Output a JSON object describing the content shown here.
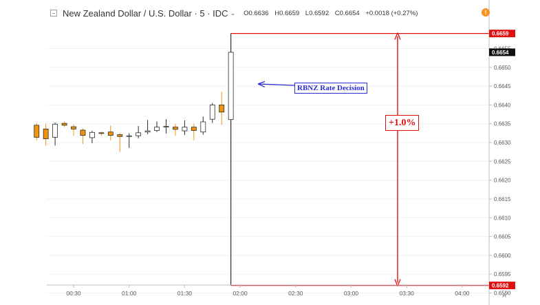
{
  "header": {
    "symbol_title": "New Zealand Dollar / U.S. Dollar · 5 · IDC",
    "open_label": "O0.6636",
    "high_label": "H0.6659",
    "low_label": "L0.6592",
    "close_label": "C0.6654",
    "change_label": "+0.0018 (+0.27%)"
  },
  "annotations": {
    "event_label": "RBNZ Rate Decision",
    "range_label": "+1.0%",
    "upper_price_badge": "0.6659",
    "last_price_badge": "0.6654",
    "lower_price_badge": "0.6592"
  },
  "price_scale": {
    "mode_label": "A"
  },
  "colors": {
    "bull_body": "#ffffff",
    "bear_body": "#f0940e",
    "candle_outline": "#2a2a2a",
    "bear_wick": "#f0940e",
    "annotation_red": "#e01010",
    "annotation_blue": "#2b2bd6",
    "last_price_badge": "#111111"
  },
  "chart_data": {
    "type": "candlestick",
    "x_ticks": [
      "00:30",
      "01:00",
      "01:30",
      "02:00",
      "02:30",
      "03:00",
      "03:30",
      "04:00"
    ],
    "y_ticks": [
      "0.6655",
      "0.6650",
      "0.6645",
      "0.6640",
      "0.6635",
      "0.6630",
      "0.6625",
      "0.6620",
      "0.6615",
      "0.6610",
      "0.6605",
      "0.6600",
      "0.6595",
      "0.6590"
    ],
    "ylim": [
      0.65868,
      0.66679
    ],
    "time_start": "00:10",
    "interval_minutes": 5,
    "candles": [
      {
        "o": 0.66346,
        "h": 0.66352,
        "l": 0.66306,
        "c": 0.66314
      },
      {
        "o": 0.66336,
        "h": 0.66351,
        "l": 0.66292,
        "c": 0.6631
      },
      {
        "o": 0.66314,
        "h": 0.66353,
        "l": 0.66292,
        "c": 0.66349
      },
      {
        "o": 0.66351,
        "h": 0.66356,
        "l": 0.66341,
        "c": 0.66346
      },
      {
        "o": 0.66342,
        "h": 0.66348,
        "l": 0.66318,
        "c": 0.66336
      },
      {
        "o": 0.66333,
        "h": 0.66338,
        "l": 0.66296,
        "c": 0.66319
      },
      {
        "o": 0.66313,
        "h": 0.66331,
        "l": 0.66298,
        "c": 0.66327
      },
      {
        "o": 0.66326,
        "h": 0.66329,
        "l": 0.66318,
        "c": 0.66324
      },
      {
        "o": 0.66328,
        "h": 0.66345,
        "l": 0.66306,
        "c": 0.66319
      },
      {
        "o": 0.66321,
        "h": 0.66325,
        "l": 0.66275,
        "c": 0.66316
      },
      {
        "o": 0.66316,
        "h": 0.66325,
        "l": 0.66286,
        "c": 0.66318
      },
      {
        "o": 0.66318,
        "h": 0.66344,
        "l": 0.66311,
        "c": 0.66326
      },
      {
        "o": 0.66328,
        "h": 0.6636,
        "l": 0.66322,
        "c": 0.66331
      },
      {
        "o": 0.66332,
        "h": 0.66356,
        "l": 0.66328,
        "c": 0.66341
      },
      {
        "o": 0.66342,
        "h": 0.66362,
        "l": 0.66324,
        "c": 0.66343
      },
      {
        "o": 0.66341,
        "h": 0.6635,
        "l": 0.66318,
        "c": 0.66335
      },
      {
        "o": 0.66331,
        "h": 0.66359,
        "l": 0.6632,
        "c": 0.66341
      },
      {
        "o": 0.66341,
        "h": 0.6635,
        "l": 0.66306,
        "c": 0.66332
      },
      {
        "o": 0.66328,
        "h": 0.66369,
        "l": 0.66321,
        "c": 0.66355
      },
      {
        "o": 0.66362,
        "h": 0.66405,
        "l": 0.66352,
        "c": 0.664
      },
      {
        "o": 0.664,
        "h": 0.66435,
        "l": 0.66347,
        "c": 0.66381
      },
      {
        "o": 0.66361,
        "h": 0.6659,
        "l": 0.6592,
        "c": 0.6654
      }
    ],
    "range_annotation": {
      "from": 0.6592,
      "to": 0.6659,
      "change": "+1.0%"
    }
  }
}
